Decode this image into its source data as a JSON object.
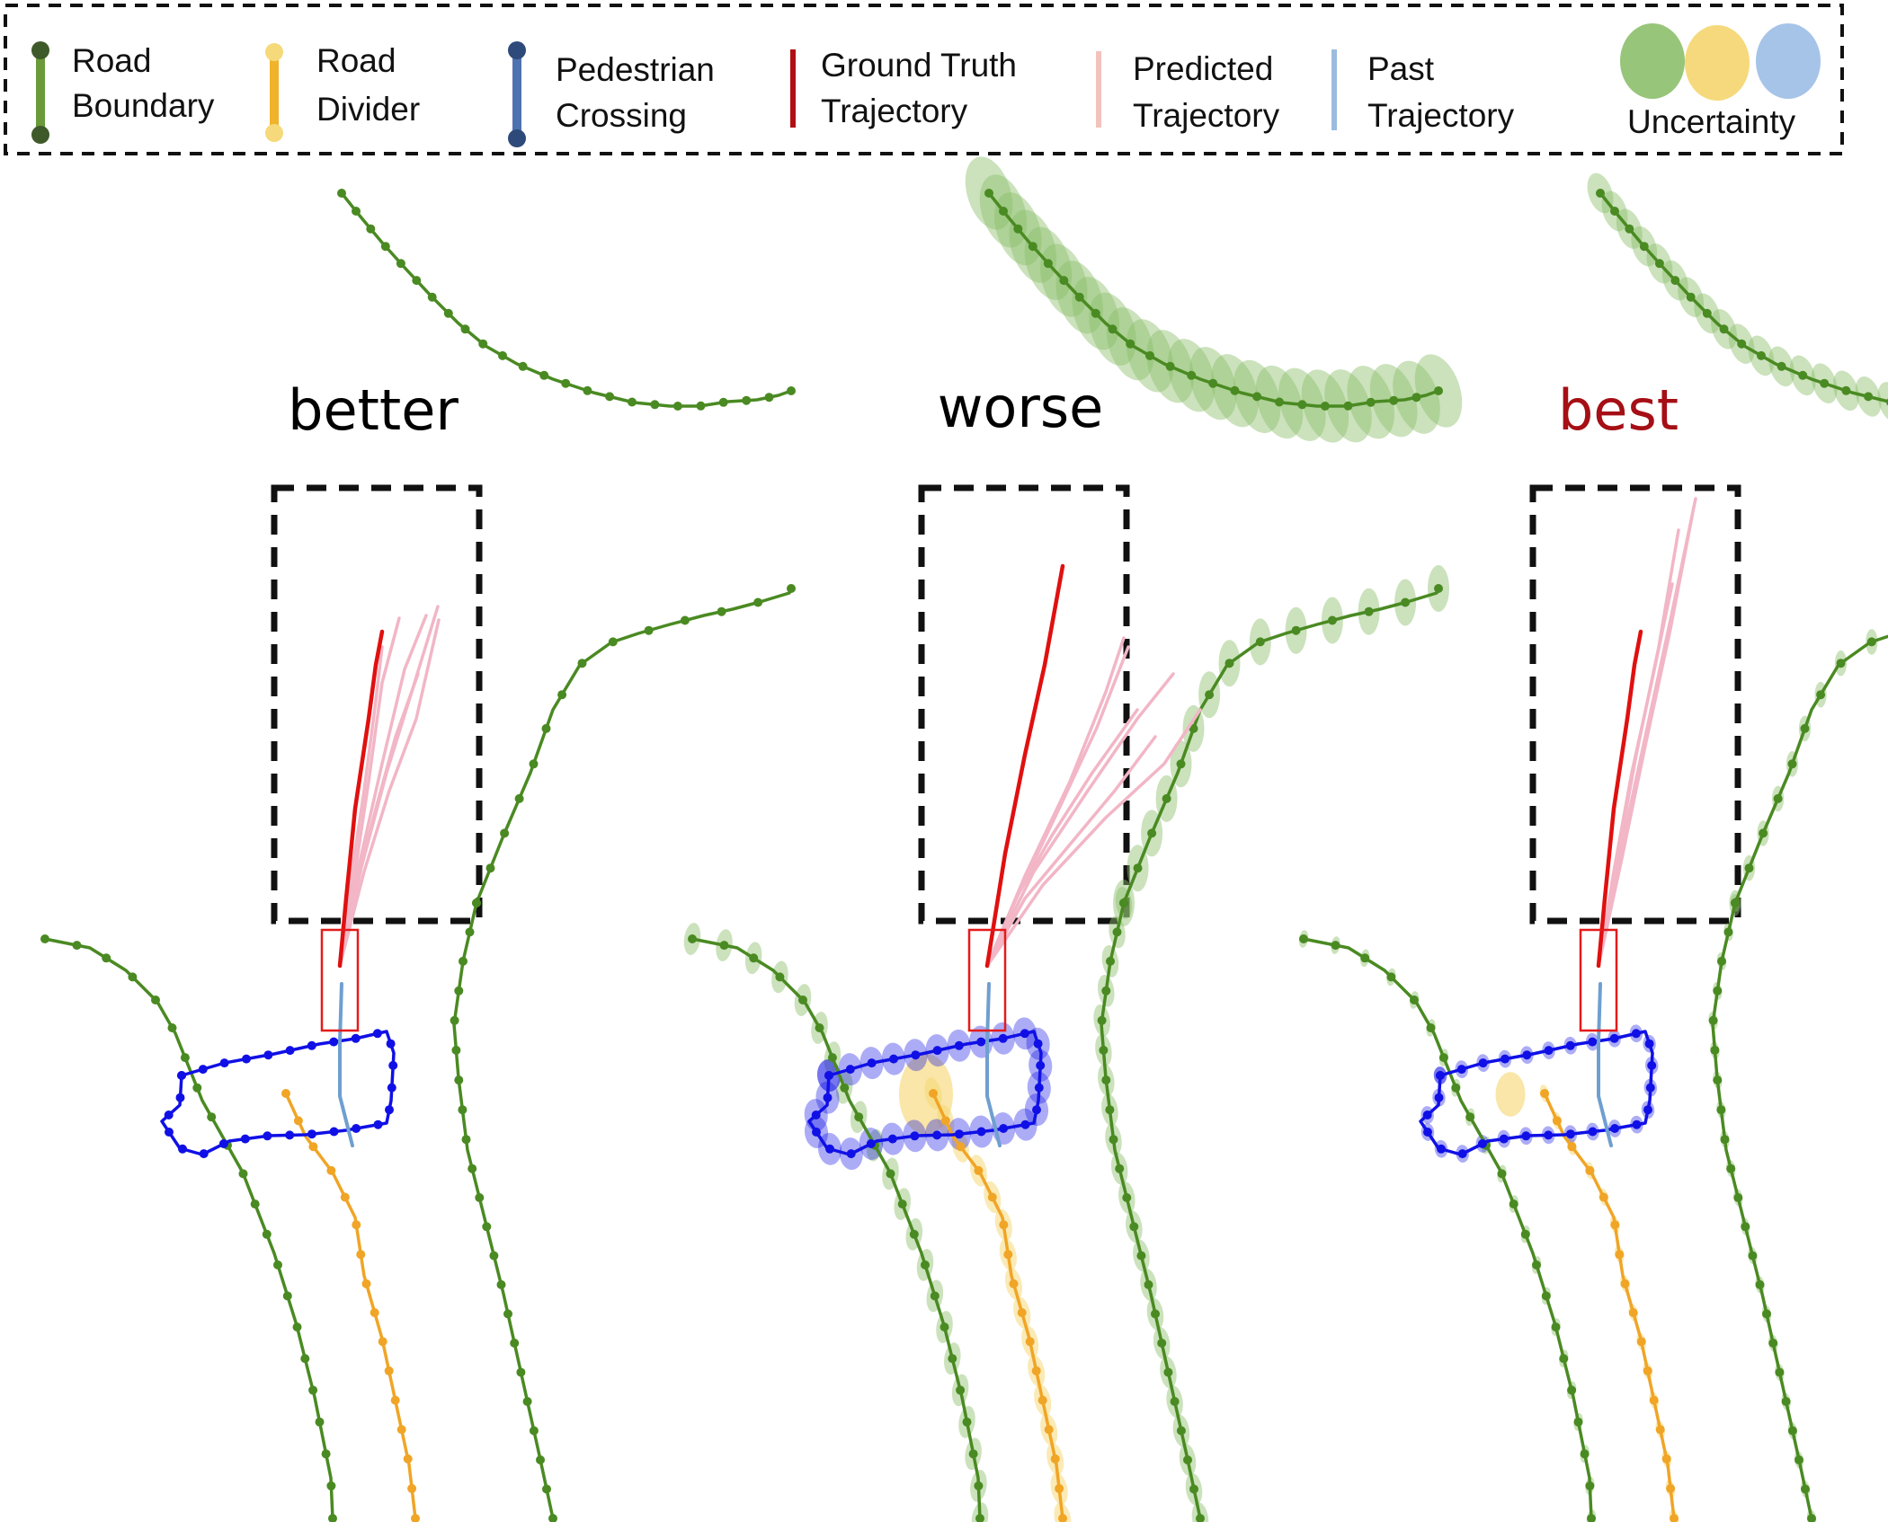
{
  "legend": {
    "road_boundary": [
      "Road",
      "Boundary"
    ],
    "road_divider": [
      "Road",
      "Divider"
    ],
    "pedestrian_crossing": [
      "Pedestrian",
      "Crossing"
    ],
    "ground_truth": [
      "Ground Truth",
      "Trajectory"
    ],
    "predicted": [
      "Predicted",
      "Trajectory"
    ],
    "past": [
      "Past",
      "Trajectory"
    ],
    "uncertainty": "Uncertainty"
  },
  "panels": [
    {
      "title": "better",
      "title_color": "#000000",
      "uncertainty": 0
    },
    {
      "title": "worse",
      "title_color": "#000000",
      "uncertainty": 1
    },
    {
      "title": "best",
      "title_color": "#a50f15",
      "uncertainty": 0.55
    }
  ],
  "colors": {
    "road_boundary": "#4a8a22",
    "road_boundary_dark": "#3f5a2a",
    "road_divider": "#f0a526",
    "pedestrian_crossing": "#1010e6",
    "ground_truth": "#e01010",
    "predicted": "#f2b6c6",
    "past": "#6f9fd0",
    "ego_box": "#e41b1b",
    "uncertainty_green": "#8cbf6a",
    "uncertainty_yellow": "#f5d56e",
    "uncertainty_blue": "#9cbde6"
  }
}
